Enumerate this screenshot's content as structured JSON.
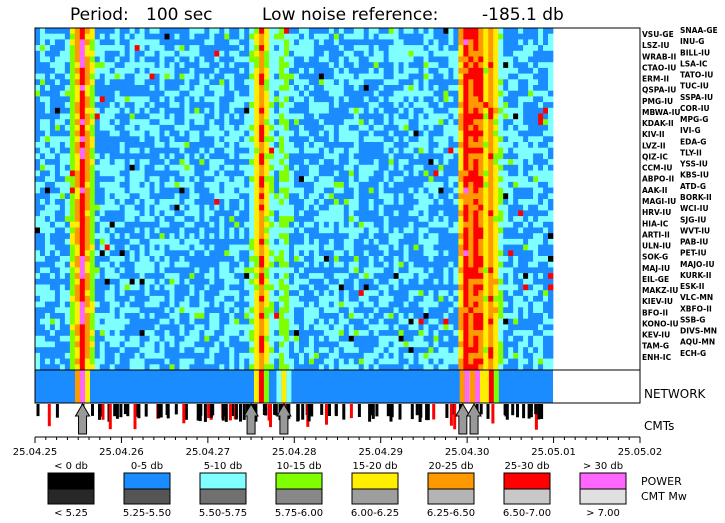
{
  "chart_data": {
    "type": "heatmap",
    "title": {
      "period_label": "Period:",
      "period_value": "100 sec",
      "noise_label": "Low noise reference:",
      "noise_value": "-185.1 db"
    },
    "stations_left": [
      "VSU-GE",
      "LSZ-IU",
      "WRAB-II",
      "CTAO-IU",
      "ERM-II",
      "QSPA-IU",
      "PMG-IU",
      "MBWA-IU",
      "KDAK-II",
      "KIV-II",
      "LVZ-II",
      "QIZ-IC",
      "CCM-IU",
      "ABPO-II",
      "AAK-II",
      "MAGI-IU",
      "HRV-IU",
      "HIA-IC",
      "ARTI-II",
      "ULN-IU",
      "SOK-G",
      "MAJ-IU",
      "EIL-GE",
      "MAKZ-IU",
      "KIEV-IU",
      "BFO-II",
      "KONO-IU",
      "KEV-IU",
      "TAM-G",
      "ENH-IC"
    ],
    "stations_right": [
      "SNAA-GE",
      "INU-G",
      "BILL-IU",
      "LSA-IC",
      "TATO-IU",
      "TUC-IU",
      "SSPA-IU",
      "COR-IU",
      "MPG-G",
      "IVI-G",
      "EDA-G",
      "TLY-II",
      "YSS-IU",
      "KBS-IU",
      "ATD-G",
      "BORK-II",
      "WCI-IU",
      "SJG-IU",
      "WVT-IU",
      "PAB-IU",
      "PET-IU",
      "MAJO-IU",
      "KURK-II",
      "ESK-II",
      "VLC-MN",
      "XBFO-II",
      "SSB-G",
      "DIVS-MN",
      "AQU-MN",
      "ECH-G"
    ],
    "network_label": "NETWORK",
    "cmts_label": "CMTs",
    "x_ticks": [
      "25.04.25",
      "25.04.26",
      "25.04.27",
      "25.04.28",
      "25.04.29",
      "25.04.30",
      "25.05.01",
      "25.05.02"
    ],
    "xlim": [
      "25.04.25",
      "25.05.02"
    ],
    "event_bands_days": [
      {
        "day": 0.55,
        "power_db": 30
      },
      {
        "day": 2.62,
        "power_db": 25
      },
      {
        "day": 2.88,
        "power_db": 15
      },
      {
        "day": 5.0,
        "power_db": 30
      },
      {
        "day": 5.12,
        "power_db": 30
      },
      {
        "day": 5.28,
        "power_db": 25
      }
    ],
    "cmt_arrows_days": [
      0.55,
      2.5,
      2.88,
      4.95,
      5.08
    ],
    "power_legend": [
      "< 0 db",
      "0-5 db",
      "5-10 db",
      "10-15 db",
      "15-20 db",
      "20-25 db",
      "25-30 db",
      "> 30 db"
    ],
    "mw_legend": [
      "< 5.25",
      "5.25-5.50",
      "5.50-5.75",
      "5.75-6.00",
      "6.00-6.25",
      "6.25-6.50",
      "6.50-7.00",
      "> 7.00"
    ],
    "power_colors": [
      "#000000",
      "#1a8cff",
      "#7fffff",
      "#80ff00",
      "#ffee00",
      "#ff9900",
      "#ff0000",
      "#ff66ff"
    ],
    "mw_colors": [
      "#282828",
      "#555555",
      "#707070",
      "#888888",
      "#9e9e9e",
      "#b4b4b4",
      "#c8c8c8",
      "#e0e0e0"
    ],
    "legend_side_power": "POWER",
    "legend_side_mw": "CMT Mw"
  }
}
